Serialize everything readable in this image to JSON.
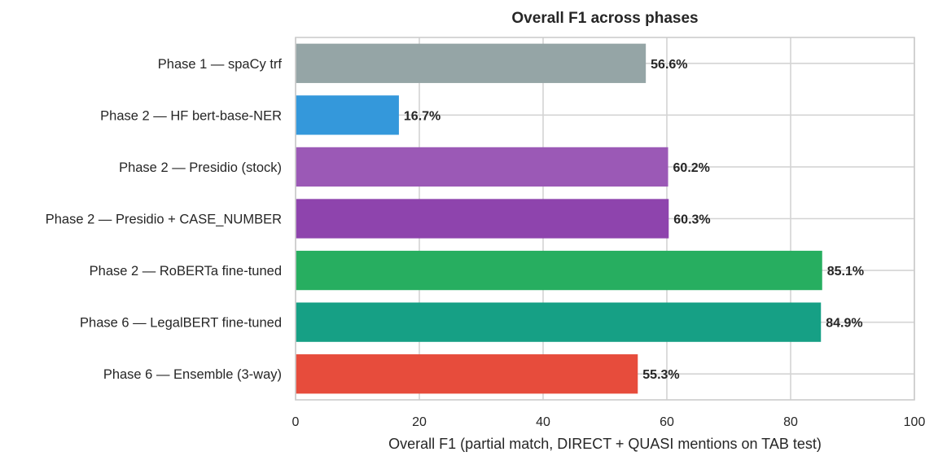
{
  "chart_data": {
    "type": "bar",
    "orientation": "horizontal",
    "title": "Overall F1 across phases",
    "xlabel": "Overall F1 (partial match, DIRECT + QUASI mentions on TAB test)",
    "ylabel": "",
    "xlim": [
      0,
      100
    ],
    "xticks": [
      0,
      20,
      40,
      60,
      80,
      100
    ],
    "grid": true,
    "value_suffix": "%",
    "categories": [
      "Phase 1 — spaCy trf",
      "Phase 2 — HF bert-base-NER",
      "Phase 2 — Presidio (stock)",
      "Phase 2 — Presidio + CASE_NUMBER",
      "Phase 2 — RoBERTa fine-tuned",
      "Phase 6 — LegalBERT fine-tuned",
      "Phase 6 — Ensemble (3-way)"
    ],
    "values": [
      56.6,
      16.7,
      60.2,
      60.3,
      85.1,
      84.9,
      55.3
    ],
    "value_labels": [
      "56.6%",
      "16.7%",
      "60.2%",
      "60.3%",
      "85.1%",
      "84.9%",
      "55.3%"
    ],
    "colors": [
      "#95a5a6",
      "#3498db",
      "#9b59b6",
      "#8e44ad",
      "#27ae60",
      "#16a085",
      "#e74c3c"
    ]
  }
}
